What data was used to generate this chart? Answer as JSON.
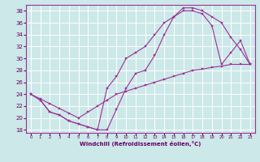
{
  "xlabel": "Windchill (Refroidissement éolien,°C)",
  "bg_color": "#cce8e8",
  "grid_color": "#ffffff",
  "line_color": "#993399",
  "xlim": [
    -0.5,
    23.5
  ],
  "ylim": [
    17.5,
    39
  ],
  "xticks": [
    0,
    1,
    2,
    3,
    4,
    5,
    6,
    7,
    8,
    9,
    10,
    11,
    12,
    13,
    14,
    15,
    16,
    17,
    18,
    19,
    20,
    21,
    22,
    23
  ],
  "yticks": [
    18,
    20,
    22,
    24,
    26,
    28,
    30,
    32,
    34,
    36,
    38
  ],
  "line1_x": [
    0,
    1,
    2,
    3,
    4,
    5,
    6,
    7,
    8,
    9,
    10,
    11,
    12,
    13,
    14,
    15,
    16,
    17,
    18,
    19,
    20,
    21,
    22,
    23
  ],
  "line1_y": [
    24,
    23,
    21,
    20.5,
    19.5,
    19,
    18.5,
    18,
    18,
    21.5,
    25,
    27.5,
    28,
    30.5,
    34,
    37,
    38,
    38,
    37.5,
    35.5,
    29,
    31,
    33,
    29
  ],
  "line2_x": [
    0,
    1,
    2,
    3,
    4,
    5,
    6,
    7,
    8,
    9,
    10,
    11,
    12,
    13,
    14,
    15,
    16,
    17,
    18,
    19,
    20,
    21,
    22,
    23
  ],
  "line2_y": [
    24,
    23,
    21,
    20.5,
    19.5,
    19,
    18.5,
    18,
    25,
    27,
    30,
    31,
    32,
    34,
    36,
    37,
    38.5,
    38.5,
    38,
    37,
    36,
    33.5,
    31.5,
    29
  ],
  "line3_x": [
    0,
    1,
    2,
    3,
    4,
    5,
    6,
    7,
    8,
    9,
    10,
    11,
    12,
    13,
    14,
    15,
    16,
    17,
    18,
    19,
    20,
    21,
    22,
    23
  ],
  "line3_y": [
    24,
    23.2,
    22.4,
    21.6,
    20.8,
    20,
    21,
    22,
    23,
    24,
    24.5,
    25,
    25.5,
    26,
    26.5,
    27,
    27.5,
    28,
    28.2,
    28.5,
    28.7,
    29,
    29,
    29
  ]
}
